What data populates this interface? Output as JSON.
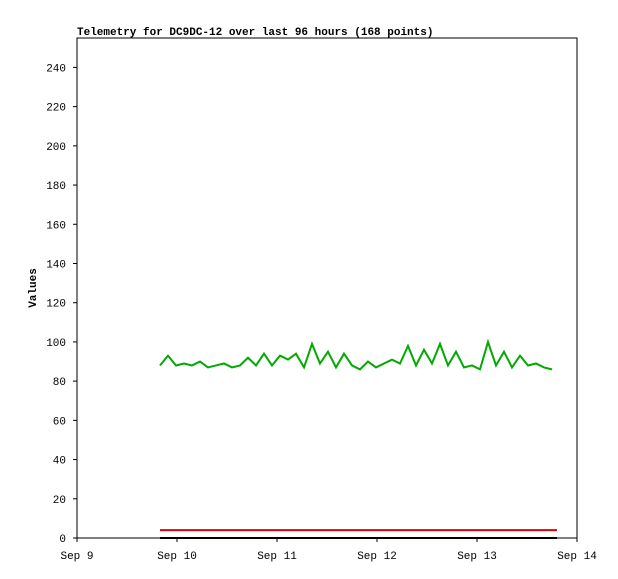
{
  "chart_data": {
    "type": "line",
    "title": "Telemetry for DC9DC-12 over last 96 hours (168 points)",
    "y_label": "Values",
    "xlim": [
      0,
      5
    ],
    "xticks": [
      {
        "value": 0,
        "label": "Sep 9"
      },
      {
        "value": 1,
        "label": "Sep 10"
      },
      {
        "value": 2,
        "label": "Sep 11"
      },
      {
        "value": 3,
        "label": "Sep 12"
      },
      {
        "value": 4,
        "label": "Sep 13"
      },
      {
        "value": 5,
        "label": "Sep 14"
      }
    ],
    "ylim": [
      0,
      255
    ],
    "yticks": [
      0,
      20,
      40,
      60,
      80,
      100,
      120,
      140,
      160,
      180,
      200,
      220,
      240
    ],
    "series": [
      {
        "color": "#00aa00",
        "x": [
          0.83,
          0.91,
          0.99,
          1.07,
          1.15,
          1.23,
          1.31,
          1.39,
          1.47,
          1.55,
          1.63,
          1.71,
          1.79,
          1.87,
          1.95,
          2.03,
          2.11,
          2.19,
          2.27,
          2.35,
          2.43,
          2.51,
          2.59,
          2.67,
          2.75,
          2.83,
          2.91,
          2.99,
          3.07,
          3.15,
          3.23,
          3.31,
          3.39,
          3.47,
          3.55,
          3.63,
          3.71,
          3.79,
          3.87,
          3.95,
          4.03,
          4.11,
          4.19,
          4.27,
          4.35,
          4.43,
          4.51,
          4.59,
          4.67,
          4.75
        ],
        "values": [
          88,
          93,
          88,
          89,
          88,
          90,
          87,
          88,
          89,
          87,
          88,
          92,
          88,
          94,
          88,
          93,
          91,
          94,
          87,
          99,
          89,
          95,
          87,
          94,
          88,
          86,
          90,
          87,
          89,
          91,
          89,
          98,
          88,
          96,
          89,
          99,
          88,
          95,
          87,
          88,
          86,
          100,
          88,
          95,
          87,
          93,
          88,
          89,
          87,
          86
        ]
      },
      {
        "color": "#dd0000",
        "x": [
          0.83,
          4.8
        ],
        "values": [
          4,
          4
        ]
      },
      {
        "color": "#000000",
        "x": [
          0.83,
          4.8
        ],
        "values": [
          0,
          0
        ]
      }
    ]
  }
}
